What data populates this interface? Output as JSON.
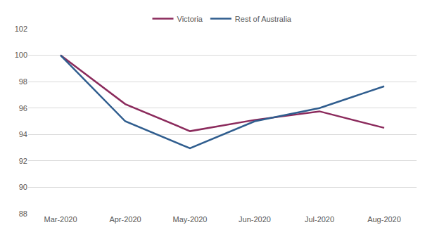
{
  "chart_data": {
    "type": "line",
    "categories": [
      "Mar-2020",
      "Apr-2020",
      "May-2020",
      "Jun-2020",
      "Jul-2020",
      "Aug-2020"
    ],
    "series": [
      {
        "name": "Victoria",
        "color": "#8b2a5c",
        "values": [
          100,
          96.3,
          94.25,
          95.1,
          95.75,
          94.5
        ]
      },
      {
        "name": "Rest of Australia",
        "color": "#2f5d8e",
        "values": [
          100,
          95.0,
          92.95,
          95.0,
          96.0,
          97.65
        ]
      }
    ],
    "ylim": [
      88,
      102
    ],
    "yticks": [
      88,
      90,
      92,
      94,
      96,
      98,
      100,
      102
    ],
    "grid": true,
    "legend": "top"
  }
}
